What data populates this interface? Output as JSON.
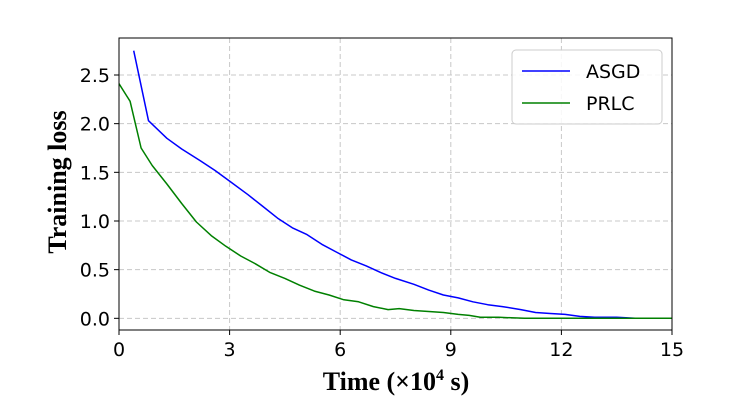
{
  "chart_data": {
    "type": "line",
    "title": "",
    "xlabel_prefix": "Time (×10",
    "xlabel_exp": "4",
    "xlabel_suffix": " s)",
    "ylabel": "Training loss",
    "xlim": [
      0,
      15
    ],
    "ylim": [
      -0.12,
      2.88
    ],
    "xticks": [
      "0",
      "3",
      "6",
      "9",
      "12",
      "15"
    ],
    "xtick_values": [
      0,
      3,
      6,
      9,
      12,
      15
    ],
    "yticks": [
      "0.0",
      "0.5",
      "1.0",
      "1.5",
      "2.0",
      "2.5"
    ],
    "ytick_values": [
      0,
      0.5,
      1.0,
      1.5,
      2.0,
      2.5
    ],
    "grid": true,
    "legend_position": "top-right",
    "series": [
      {
        "name": "ASGD",
        "color": "#0000ff",
        "x": [
          0.4,
          0.8,
          1.3,
          1.7,
          2.2,
          2.6,
          3.0,
          3.5,
          3.9,
          4.3,
          4.7,
          5.1,
          5.5,
          5.9,
          6.3,
          6.7,
          7.1,
          7.5,
          8.0,
          8.4,
          8.8,
          9.2,
          9.6,
          10.0,
          10.4,
          10.9,
          11.3,
          11.7,
          12.1,
          12.5,
          12.9,
          13.5,
          14.0,
          15.0
        ],
        "y": [
          2.75,
          2.03,
          1.85,
          1.74,
          1.62,
          1.52,
          1.41,
          1.27,
          1.15,
          1.03,
          0.93,
          0.86,
          0.76,
          0.68,
          0.6,
          0.54,
          0.47,
          0.41,
          0.35,
          0.29,
          0.24,
          0.21,
          0.17,
          0.14,
          0.12,
          0.09,
          0.06,
          0.05,
          0.04,
          0.02,
          0.01,
          0.01,
          0.0,
          0.0
        ]
      },
      {
        "name": "PRLC",
        "color": "#008000",
        "x": [
          0.0,
          0.3,
          0.6,
          0.9,
          1.3,
          1.7,
          2.1,
          2.5,
          2.9,
          3.3,
          3.7,
          4.1,
          4.5,
          4.9,
          5.3,
          5.7,
          6.1,
          6.5,
          6.9,
          7.3,
          7.6,
          8.0,
          8.4,
          8.8,
          9.2,
          9.5,
          9.8,
          10.3,
          11.0,
          12.0,
          13.0,
          15.0
        ],
        "y": [
          2.41,
          2.23,
          1.75,
          1.57,
          1.38,
          1.18,
          0.99,
          0.85,
          0.74,
          0.64,
          0.56,
          0.47,
          0.41,
          0.34,
          0.28,
          0.24,
          0.19,
          0.17,
          0.12,
          0.09,
          0.1,
          0.08,
          0.07,
          0.06,
          0.04,
          0.03,
          0.01,
          0.01,
          0.0,
          0.0,
          0.0,
          0.0
        ]
      }
    ]
  }
}
